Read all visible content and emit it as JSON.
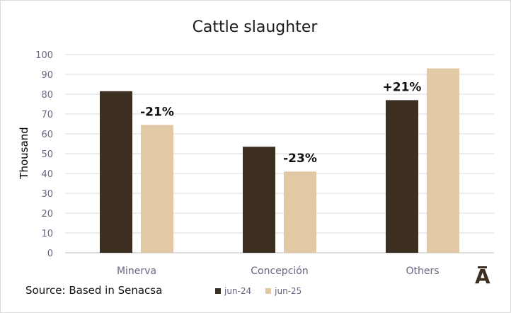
{
  "chart_data": {
    "type": "bar",
    "title": "Cattle slaughter",
    "ylabel": "Thousand",
    "xlabel": "",
    "ylim": [
      0,
      100
    ],
    "yticks": [
      0,
      10,
      20,
      30,
      40,
      50,
      60,
      70,
      80,
      90,
      100
    ],
    "categories": [
      "Minerva",
      "Concepción",
      "Others"
    ],
    "series": [
      {
        "name": "jun-24",
        "color": "#3d2e22",
        "values": [
          81.5,
          53.5,
          77
        ]
      },
      {
        "name": "jun-25",
        "color": "#e2c9a6",
        "values": [
          64.5,
          41,
          93
        ]
      }
    ],
    "annotations": [
      "-21%",
      "-23%",
      "+21%"
    ],
    "grid": true,
    "legend_position": "bottom"
  },
  "footer": {
    "source": "Source: Based in Senacsa",
    "logo": "A"
  }
}
